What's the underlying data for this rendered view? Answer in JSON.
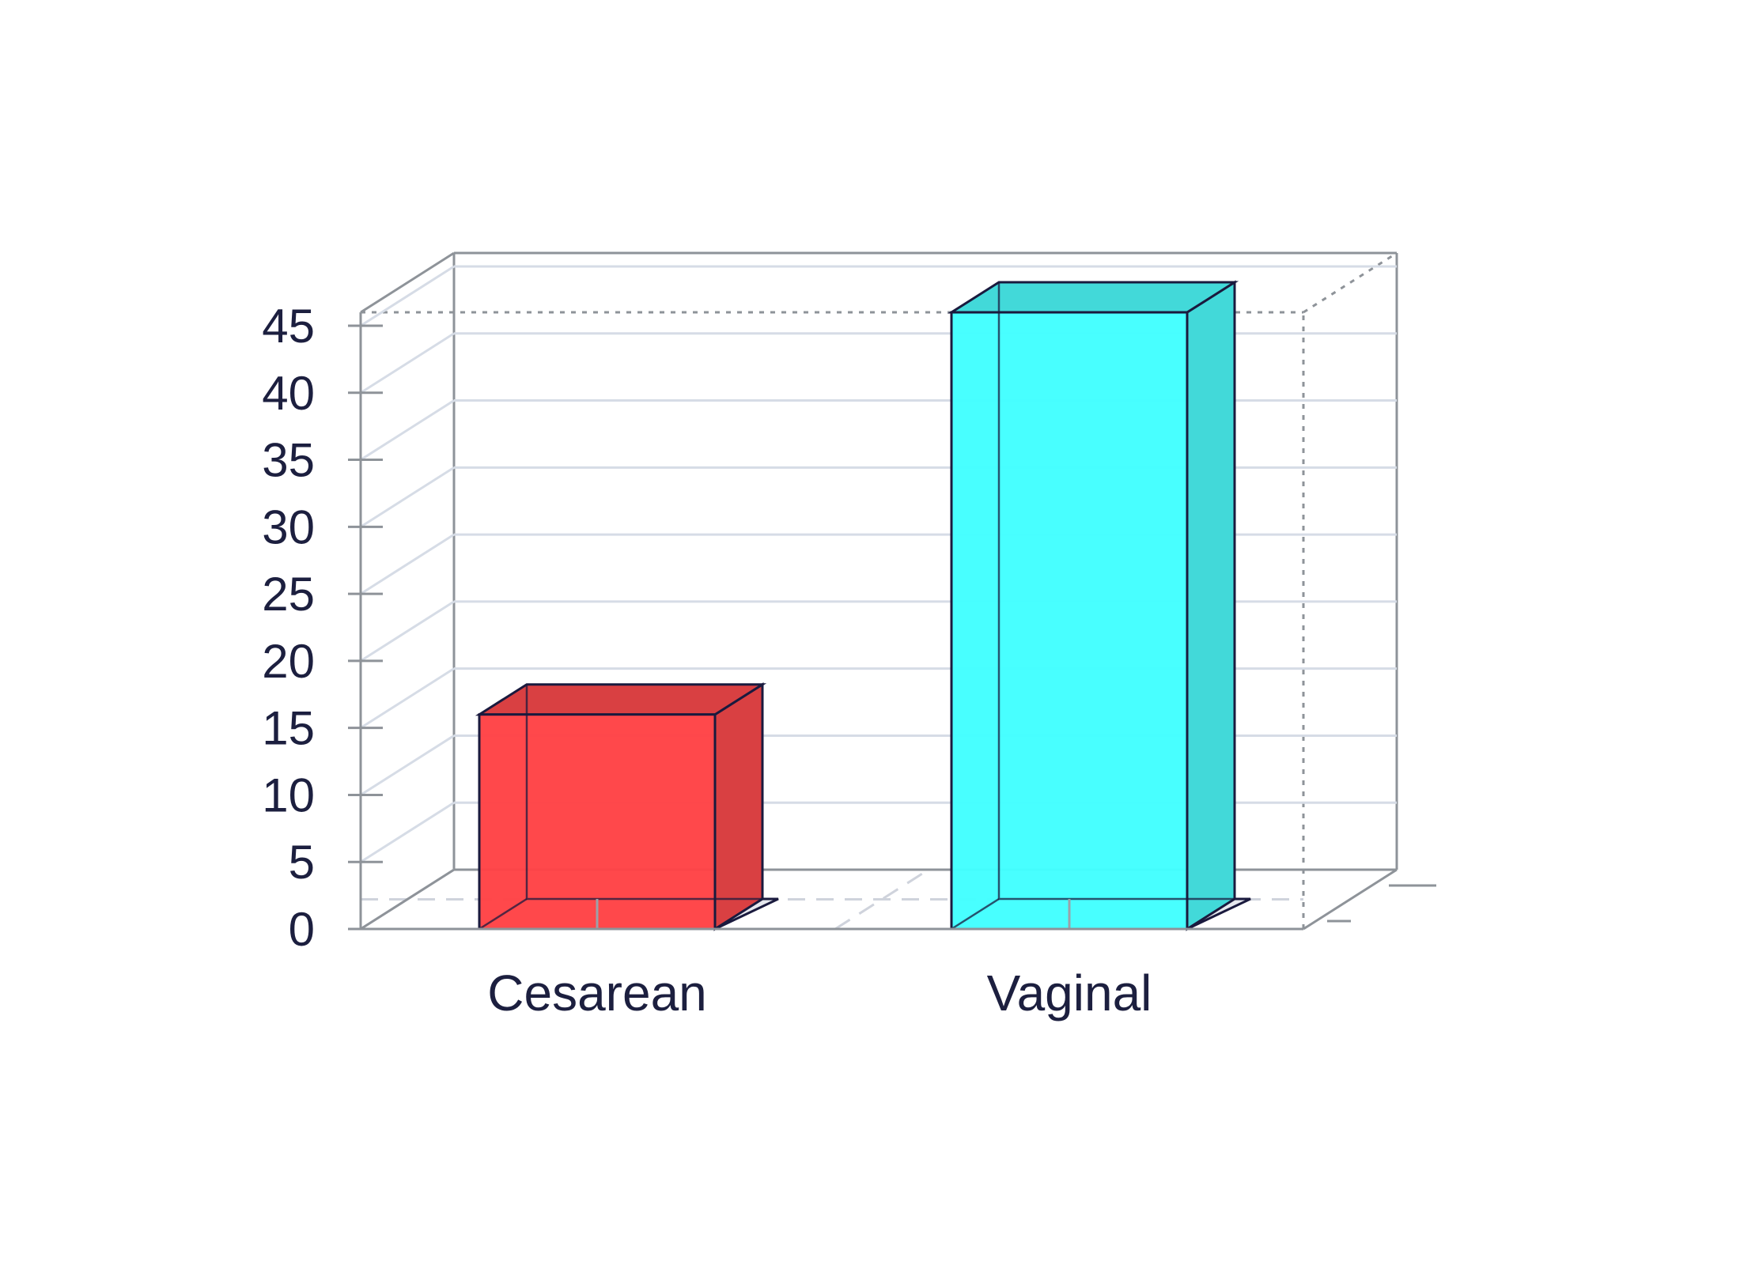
{
  "chart_data": {
    "type": "bar",
    "title": "",
    "xlabel": "",
    "ylabel": "",
    "categories": [
      "Cesarean",
      "Vaginal"
    ],
    "values": [
      16,
      46
    ],
    "ylim": [
      0,
      46
    ],
    "yticks": [
      0,
      5,
      10,
      15,
      20,
      25,
      30,
      35,
      40,
      45
    ],
    "ytick_labels": [
      "0",
      "5",
      "10",
      "15",
      "20",
      "25",
      "30",
      "35",
      "40",
      "45"
    ],
    "grid": true,
    "style": "3d",
    "colors": {
      "bars": [
        "#ff4245",
        "#42ffff"
      ],
      "bar_sides": [
        "#d94042",
        "#42d9d9"
      ],
      "edge": "#1a1a3e",
      "text": "#1c1f3f",
      "grid": "#d6dce6",
      "frame": "#8e9399"
    }
  }
}
